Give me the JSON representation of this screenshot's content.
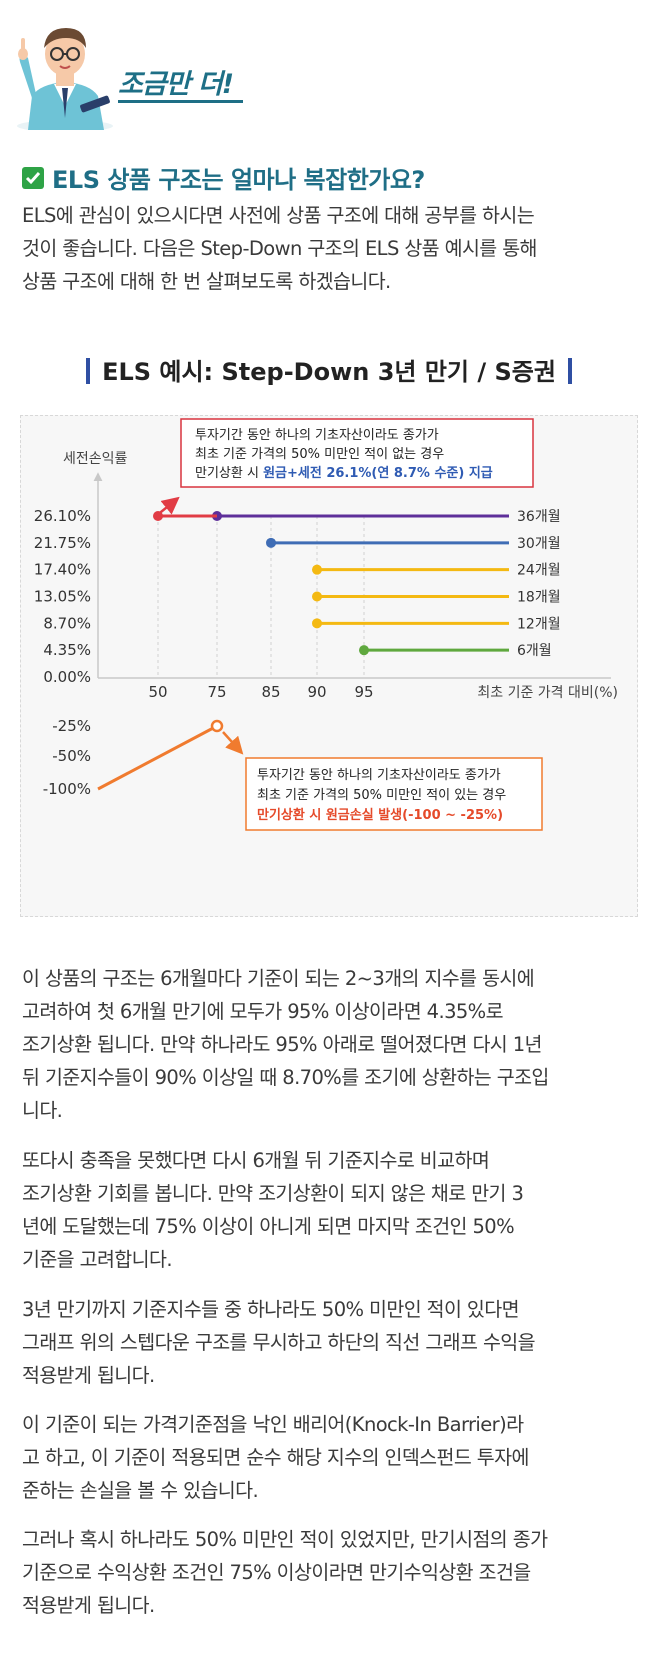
{
  "badge": {
    "label": "조금만 더!"
  },
  "question": {
    "title": "ELS 상품 구조는 얼마나 복잡한가요?"
  },
  "intro": [
    "ELS에 관심이 있으시다면 사전에 상품 구조에 대해 공부를 하시는",
    "것이 좋습니다. 다음은 Step-Down 구조의 ELS 상품 예시를 통해",
    "상품 구조에 대해 한 번 살펴보도록 하겠습니다."
  ],
  "example_title": "ELS 예시: Step-Down 3년 만기 / S증권",
  "callout_top": {
    "line1": "투자기간 동안 하나의 기초자산이라도 종가가",
    "line2": "최초 기준 가격의 50% 미만인 적이 없는 경우",
    "line3_plain": "만기상환 시 ",
    "line3_highlight": "원금+세전 26.1%(연 8.7% 수준) 지급"
  },
  "callout_bottom": {
    "line1": "투자기간 동안 하나의 기초자산이라도 종가가",
    "line2": "최초 기준 가격의 50% 미만인 적이 있는 경우",
    "line3_highlight": "만기상환 시 원금손실 발생(-100 ~ -25%)"
  },
  "chart_data": {
    "type": "line",
    "ylabel": "세전손익률",
    "xlabel": "최초 기준 가격 대비(%)",
    "x_ticks": [
      "50",
      "75",
      "85",
      "90",
      "95"
    ],
    "y_ticks_upper": [
      "26.10%",
      "21.75%",
      "17.40%",
      "13.05%",
      "8.70%",
      "4.35%",
      "0.00%"
    ],
    "y_ticks_lower": [
      "-25%",
      "-50%",
      "-100%"
    ],
    "series": [
      {
        "name": "36개월",
        "start_x": 75,
        "y": 26.1,
        "color": "#5e2f9a"
      },
      {
        "name": "30개월",
        "start_x": 85,
        "y": 21.75,
        "color": "#3f6db5"
      },
      {
        "name": "24개월",
        "start_x": 90,
        "y": 17.4,
        "color": "#f4b912"
      },
      {
        "name": "18개월",
        "start_x": 90,
        "y": 13.05,
        "color": "#f4b912"
      },
      {
        "name": "12개월",
        "start_x": 90,
        "y": 8.7,
        "color": "#f4b912"
      },
      {
        "name": "6개월",
        "start_x": 95,
        "y": 4.35,
        "color": "#5fa83e"
      }
    ],
    "upper_marker": {
      "x": 50,
      "y": 26.1,
      "color": "#e13c45"
    },
    "loss_line": {
      "from_y": -100,
      "to_x": 75,
      "to_y": -25,
      "color": "#f07b2f"
    }
  },
  "body": [
    [
      "이 상품의 구조는 6개월마다 기준이 되는 2~3개의 지수를 동시에",
      "고려하여 첫 6개월 만기에 모두가 95% 이상이라면 4.35%로",
      "조기상환 됩니다. 만약 하나라도 95% 아래로 떨어졌다면 다시 1년",
      "뒤 기준지수들이 90% 이상일 때 8.70%를 조기에 상환하는 구조입",
      "니다."
    ],
    [
      "또다시 충족을 못했다면 다시 6개월 뒤 기준지수로 비교하며",
      "조기상환 기회를 봅니다. 만약 조기상환이 되지 않은 채로 만기 3",
      "년에 도달했는데 75% 이상이 아니게 되면 마지막 조건인 50%",
      "기준을 고려합니다."
    ],
    [
      "3년 만기까지 기준지수들 중 하나라도 50% 미만인 적이 있다면",
      "그래프 위의 스텝다운 구조를 무시하고 하단의 직선 그래프 수익을",
      "적용받게 됩니다."
    ],
    [
      "이 기준이 되는 가격기준점을 낙인 배리어(Knock-In Barrier)라",
      "고 하고, 이 기준이 적용되면 순수 해당 지수의 인덱스펀드 투자에",
      "준하는 손실을 볼 수 있습니다."
    ],
    [
      "그러나 혹시 하나라도 50% 미만인 적이 있었지만, 만기시점의 종가",
      "기준으로 수익상환 조건인 75% 이상이라면 만기수익상환 조건을",
      "적용받게 됩니다."
    ]
  ]
}
